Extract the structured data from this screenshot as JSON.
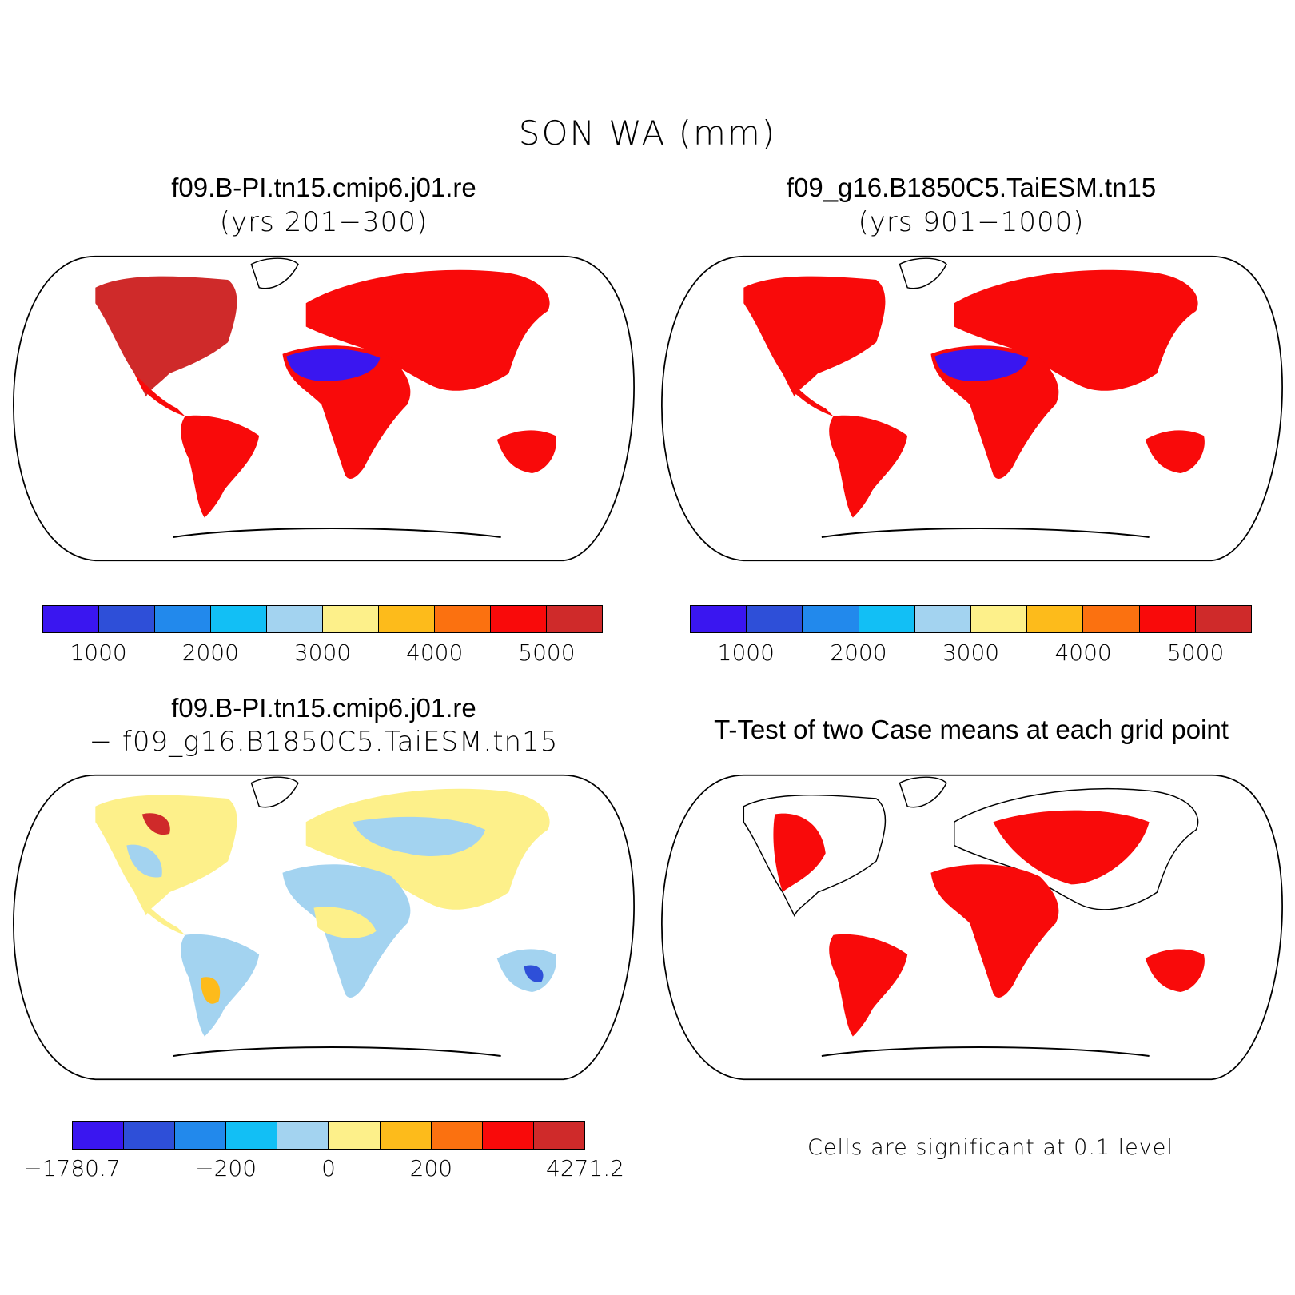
{
  "figure": {
    "title": "SON WA (mm)",
    "panel_a": {
      "title": "f09.B-PI.tn15.cmip6.j01.re",
      "subtitle": "(yrs 201−300)"
    },
    "panel_b": {
      "title": "f09_g16.B1850C5.TaiESM.tn15",
      "subtitle": "(yrs 901−1000)"
    },
    "panel_c": {
      "title": "f09.B-PI.tn15.cmip6.j01.re",
      "subtitle": "− f09_g16.B1850C5.TaiESM.tn15"
    },
    "panel_d": {
      "title": "T-Test of two Case means at each grid point",
      "note": "Cells are significant at 0.1 level"
    }
  },
  "colorbar_abs": {
    "colors": [
      "#3a16f0",
      "#2e4fd8",
      "#2289ec",
      "#12bff5",
      "#a3d3f0",
      "#fdf08a",
      "#fdbb1b",
      "#fb7110",
      "#f90a0a",
      "#cf2a2a"
    ],
    "ticks": [
      "1000",
      "2000",
      "3000",
      "4000",
      "5000"
    ]
  },
  "colorbar_diff": {
    "colors": [
      "#3a16f0",
      "#2e4fd8",
      "#2289ec",
      "#12bff5",
      "#a3d3f0",
      "#fdf08a",
      "#fdbb1b",
      "#fb7110",
      "#f90a0a",
      "#cf2a2a"
    ],
    "ticks": [
      "−1780.7",
      "−200",
      "0",
      "200",
      "4271.2"
    ]
  }
}
